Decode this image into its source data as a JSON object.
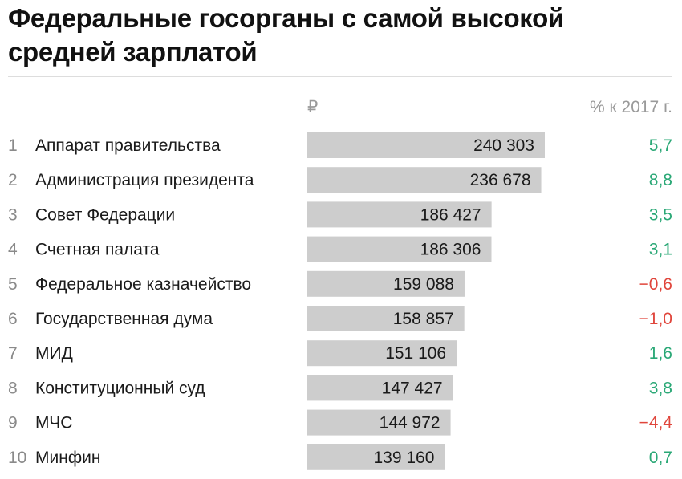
{
  "title": "Федеральные госорганы с самой высокой средней зарплатой",
  "columns": {
    "value_header": "₽",
    "change_header": "% к 2017 г."
  },
  "colors": {
    "bar": "#cdcdcd",
    "positive": "#2aa876",
    "negative": "#e0463c",
    "text": "#1a1a1a",
    "rank": "#8a8a8a"
  },
  "chart_data": {
    "type": "bar",
    "orientation": "horizontal",
    "title": "Федеральные госорганы с самой высокой средней зарплатой",
    "xlabel": "₽",
    "ylabel": "",
    "ranks": [
      "1",
      "2",
      "3",
      "4",
      "5",
      "6",
      "7",
      "8",
      "9",
      "10"
    ],
    "categories": [
      "Аппарат правительства",
      "Администрация президента",
      "Совет Федерации",
      "Счетная палата",
      "Федеральное казначейство",
      "Государственная дума",
      "МИД",
      "Конституционный суд",
      "МЧС",
      "Минфин"
    ],
    "values": [
      240303,
      236678,
      186427,
      186306,
      159088,
      158857,
      151106,
      147427,
      144972,
      139160
    ],
    "value_labels": [
      "240 303",
      "236 678",
      "186 427",
      "186 306",
      "159 088",
      "158 857",
      "151 106",
      "147 427",
      "144 972",
      "139 160"
    ],
    "change_header": "% к 2017 г.",
    "changes": [
      5.7,
      8.8,
      3.5,
      3.1,
      -0.6,
      -1.0,
      1.6,
      3.8,
      -4.4,
      0.7
    ],
    "change_labels": [
      "5,7",
      "8,8",
      "3,5",
      "3,1",
      "−0,6",
      "−1,0",
      "1,6",
      "3,8",
      "−4,4",
      "0,7"
    ],
    "xlim": [
      0,
      240303
    ],
    "grid": false,
    "legend": "none"
  }
}
